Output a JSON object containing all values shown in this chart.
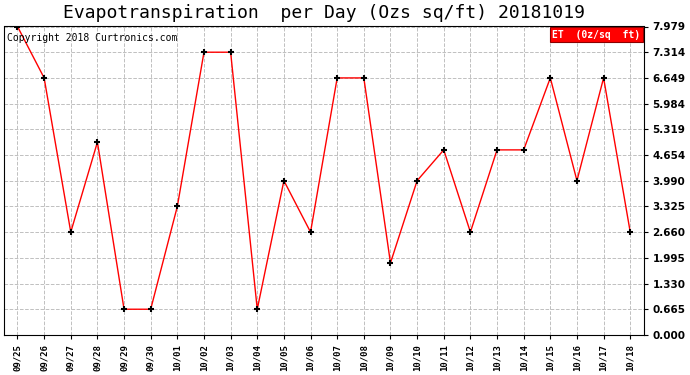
{
  "title": "Evapotranspiration  per Day (Ozs sq/ft) 20181019",
  "copyright": "Copyright 2018 Curtronics.com",
  "legend_label": "ET  (0z/sq  ft)",
  "x_labels": [
    "09/25",
    "09/26",
    "09/27",
    "09/28",
    "09/29",
    "09/30",
    "10/01",
    "10/02",
    "10/03",
    "10/04",
    "10/05",
    "10/06",
    "10/07",
    "10/08",
    "10/09",
    "10/10",
    "10/11",
    "10/12",
    "10/13",
    "10/14",
    "10/15",
    "10/16",
    "10/17",
    "10/18"
  ],
  "y_values": [
    7.979,
    6.649,
    2.66,
    4.987,
    0.665,
    0.665,
    3.325,
    7.314,
    7.314,
    0.665,
    3.99,
    2.66,
    6.649,
    6.649,
    1.862,
    3.99,
    4.787,
    2.66,
    4.787,
    4.787,
    6.649,
    3.99,
    6.649,
    2.66
  ],
  "y_ticks": [
    0.0,
    0.665,
    1.33,
    1.995,
    2.66,
    3.325,
    3.99,
    4.654,
    5.319,
    5.984,
    6.649,
    7.314,
    7.979
  ],
  "line_color": "red",
  "marker": "+",
  "marker_color": "black",
  "marker_size": 5,
  "plot_bg_color": "#ffffff",
  "fig_bg_color": "#ffffff",
  "grid_color": "#c0c0c0",
  "title_fontsize": 13,
  "copyright_fontsize": 7,
  "legend_bg": "red",
  "legend_text_color": "white",
  "ylim": [
    0.0,
    7.979
  ],
  "figsize": [
    6.9,
    3.75
  ],
  "dpi": 100
}
